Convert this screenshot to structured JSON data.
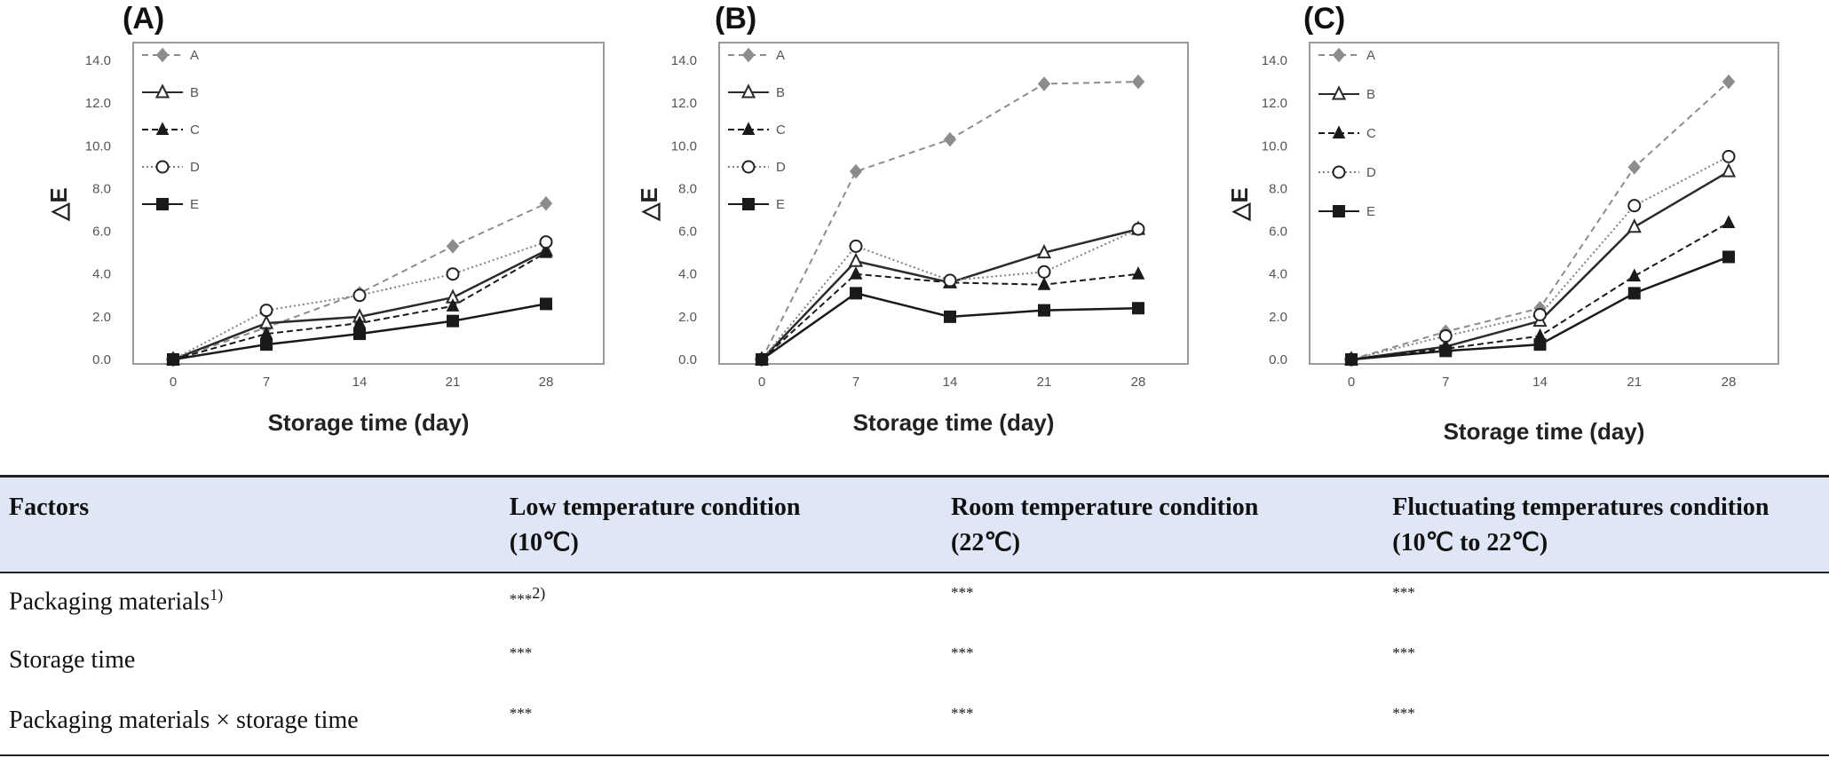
{
  "chart_data": [
    {
      "type": "line",
      "panel": "(A)",
      "x": [
        0,
        7,
        14,
        21,
        28
      ],
      "xlabel": "Storage time (day)",
      "ylabel": "△E",
      "ylim": [
        0,
        14
      ],
      "yticks": [
        "0.0",
        "2.0",
        "4.0",
        "6.0",
        "8.0",
        "10.0",
        "12.0",
        "14.0"
      ],
      "legend": "top-left",
      "series": [
        {
          "name": "A",
          "values": [
            0,
            1.5,
            3.1,
            5.3,
            7.3
          ]
        },
        {
          "name": "B",
          "values": [
            0,
            1.7,
            2.0,
            2.9,
            5.1
          ]
        },
        {
          "name": "C",
          "values": [
            0,
            1.2,
            1.7,
            2.5,
            5.0
          ]
        },
        {
          "name": "D",
          "values": [
            0,
            2.3,
            3.0,
            4.0,
            5.5
          ]
        },
        {
          "name": "E",
          "values": [
            0,
            0.7,
            1.2,
            1.8,
            2.6
          ]
        }
      ]
    },
    {
      "type": "line",
      "panel": "(B)",
      "x": [
        0,
        7,
        14,
        21,
        28
      ],
      "xlabel": "Storage time (day)",
      "ylabel": "△E",
      "ylim": [
        0,
        14
      ],
      "yticks": [
        "0.0",
        "2.0",
        "4.0",
        "6.0",
        "8.0",
        "10.0",
        "12.0",
        "14.0"
      ],
      "legend": "top-left",
      "series": [
        {
          "name": "A",
          "values": [
            0,
            8.8,
            10.3,
            12.9,
            13.0
          ]
        },
        {
          "name": "B",
          "values": [
            0,
            4.6,
            3.6,
            5.0,
            6.1
          ]
        },
        {
          "name": "C",
          "values": [
            0,
            4.0,
            3.6,
            3.5,
            4.0
          ]
        },
        {
          "name": "D",
          "values": [
            0,
            5.3,
            3.7,
            4.1,
            6.1
          ]
        },
        {
          "name": "E",
          "values": [
            0,
            3.1,
            2.0,
            2.3,
            2.4
          ]
        }
      ]
    },
    {
      "type": "line",
      "panel": "(C)",
      "x": [
        0,
        7,
        14,
        21,
        28
      ],
      "xlabel": "Storage time (day)",
      "ylabel": "△E",
      "ylim": [
        0,
        14
      ],
      "yticks": [
        "0.0",
        "2.0",
        "4.0",
        "6.0",
        "8.0",
        "10.0",
        "12.0",
        "14.0"
      ],
      "legend": "top-left",
      "series": [
        {
          "name": "A",
          "values": [
            0,
            1.3,
            2.4,
            9.0,
            13.0
          ]
        },
        {
          "name": "B",
          "values": [
            0,
            0.6,
            1.8,
            6.2,
            8.8
          ]
        },
        {
          "name": "C",
          "values": [
            0,
            0.5,
            1.1,
            3.9,
            6.4
          ]
        },
        {
          "name": "D",
          "values": [
            0,
            1.1,
            2.1,
            7.2,
            9.5
          ]
        },
        {
          "name": "E",
          "values": [
            0,
            0.4,
            0.7,
            3.1,
            4.8
          ]
        }
      ]
    }
  ],
  "series_styles": [
    {
      "color": "#8c8c8c",
      "dash": "7,5",
      "marker": "diamond-filled"
    },
    {
      "color": "#2b2b2b",
      "dash": "",
      "marker": "triangle-open"
    },
    {
      "color": "#1a1a1a",
      "dash": "7,4",
      "marker": "triangle-filled"
    },
    {
      "color": "#808080",
      "dash": "2,3",
      "marker": "circle-open"
    },
    {
      "color": "#1a1a1a",
      "dash": "",
      "marker": "square-filled"
    }
  ],
  "table": {
    "headers": [
      "Factors",
      "Low temperature condition (10℃)",
      "Room temperature condition (22℃)",
      "Fluctuating temperatures condition (10℃ to 22℃)"
    ],
    "header_lines": [
      [
        "Factors",
        ""
      ],
      [
        "Low temperature condition",
        "(10℃)"
      ],
      [
        "Room temperature condition",
        "(22℃)"
      ],
      [
        "Fluctuating temperatures condition",
        "(10℃ to 22℃)"
      ]
    ],
    "rows": [
      {
        "factor": "Packaging materials",
        "factor_sup": "1)",
        "values": [
          "***",
          "***",
          "***"
        ],
        "value_sup": "2)"
      },
      {
        "factor": "Storage time",
        "factor_sup": "",
        "values": [
          "***",
          "***",
          "***"
        ],
        "value_sup": ""
      },
      {
        "factor": "Packaging materials × storage time",
        "factor_sup": "",
        "values": [
          "***",
          "***",
          "***"
        ],
        "value_sup": ""
      }
    ]
  }
}
